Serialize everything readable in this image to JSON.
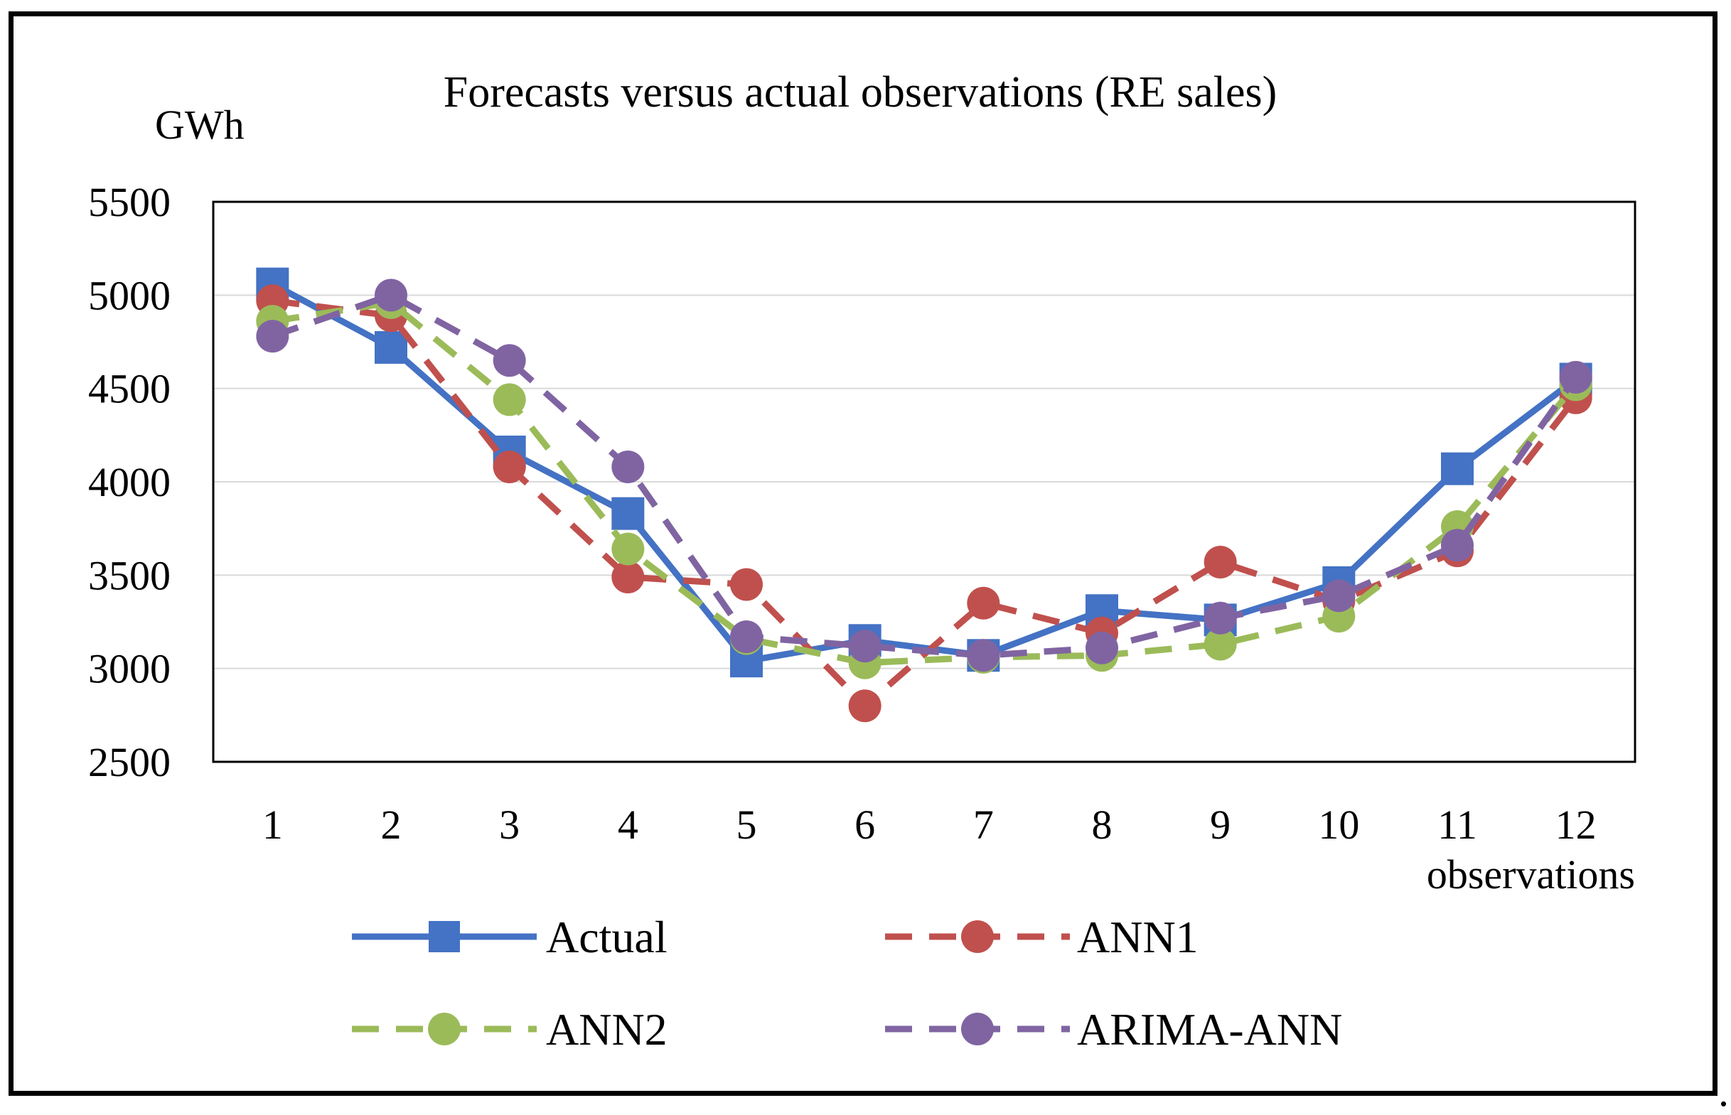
{
  "chart_data": {
    "type": "line",
    "title": "Forecasts versus actual observations (RE sales)",
    "ylabel": "GWh",
    "xlabel": "observations",
    "ylim": [
      2500,
      5500
    ],
    "yticks": [
      "2500",
      "3000",
      "3500",
      "4000",
      "4500",
      "5000",
      "5500"
    ],
    "categories": [
      "1",
      "2",
      "3",
      "4",
      "5",
      "6",
      "7",
      "8",
      "9",
      "10",
      "11",
      "12"
    ],
    "grid": "horizontal",
    "legend_position": "bottom",
    "series": [
      {
        "name": "Actual",
        "color": "#4472C4",
        "line": "solid",
        "marker": "square",
        "values": [
          5060,
          4720,
          4160,
          3830,
          3040,
          3150,
          3070,
          3310,
          3260,
          3460,
          4070,
          4550
        ]
      },
      {
        "name": "ANN1",
        "color": "#C0504D",
        "line": "dashed",
        "marker": "circle",
        "values": [
          4970,
          4890,
          4080,
          3490,
          3450,
          2800,
          3350,
          3190,
          3570,
          3360,
          3630,
          4450
        ]
      },
      {
        "name": "ANN2",
        "color": "#9BBB59",
        "line": "dashed",
        "marker": "circle",
        "values": [
          4860,
          4960,
          4440,
          3640,
          3160,
          3030,
          3060,
          3070,
          3130,
          3280,
          3760,
          4520
        ]
      },
      {
        "name": "ARIMA-ANN",
        "color": "#8064A2",
        "line": "dashed",
        "marker": "circle",
        "values": [
          4780,
          5000,
          4650,
          4080,
          3170,
          3120,
          3070,
          3110,
          3270,
          3390,
          3660,
          4560
        ]
      }
    ]
  },
  "trailing_mark": "."
}
